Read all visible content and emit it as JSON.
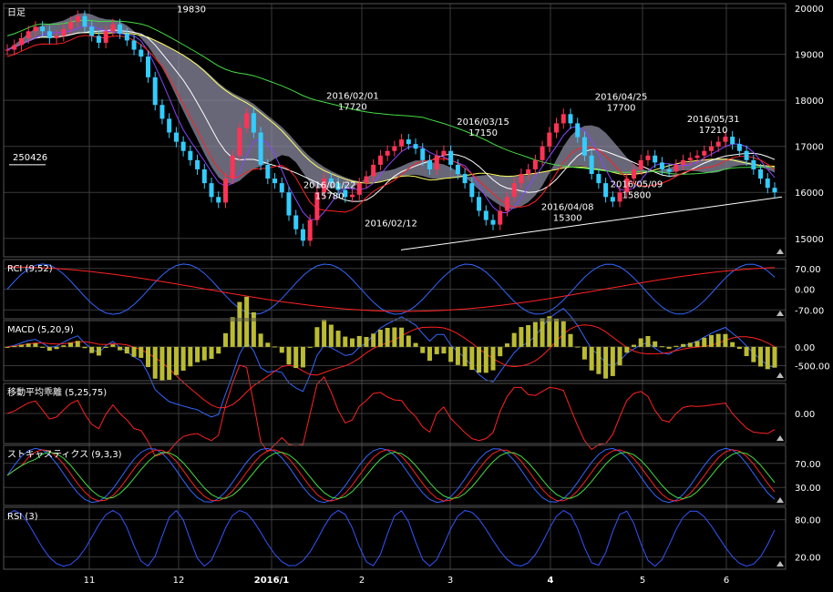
{
  "chart_data": [
    {
      "panel": "price",
      "type": "candlestick",
      "title": "日足",
      "ylim": [
        14600,
        20100
      ],
      "yticks": [
        15000,
        16000,
        17000,
        18000,
        19000,
        20000
      ],
      "xticks": [
        "11",
        "12",
        "2016/1",
        "2",
        "3",
        "4",
        "5",
        "6"
      ],
      "annotations": [
        {
          "date": "",
          "value": "19830",
          "x": 0.24,
          "y": 19830
        },
        {
          "date": "2016/02/01",
          "value": "17720",
          "x": 0.45,
          "y": 17720
        },
        {
          "date": "2016/01/22",
          "value": "15780",
          "x": 0.42,
          "y": 15780
        },
        {
          "date": "2016/02/12",
          "value": "",
          "x": 0.5,
          "y": 14950
        },
        {
          "date": "2016/03/15",
          "value": "17150",
          "x": 0.62,
          "y": 17150
        },
        {
          "date": "2016/04/08",
          "value": "15300",
          "x": 0.73,
          "y": 15300
        },
        {
          "date": "2016/04/25",
          "value": "17700",
          "x": 0.8,
          "y": 17700
        },
        {
          "date": "2016/05/09",
          "value": "15800",
          "x": 0.82,
          "y": 15800
        },
        {
          "date": "2016/05/31",
          "value": "17210",
          "x": 0.92,
          "y": 17210
        }
      ],
      "volume_label": "250426",
      "close_series": [
        19100,
        19200,
        19350,
        19500,
        19600,
        19500,
        19350,
        19400,
        19550,
        19700,
        19830,
        19600,
        19400,
        19250,
        19500,
        19650,
        19450,
        19300,
        19100,
        18950,
        18500,
        17900,
        17600,
        17300,
        17100,
        16900,
        16700,
        16500,
        16200,
        15900,
        15780,
        16300,
        16800,
        17400,
        17720,
        17300,
        16600,
        16300,
        16200,
        16000,
        15500,
        15200,
        14950,
        15400,
        16000,
        16300,
        16200,
        16050,
        15900,
        15950,
        16200,
        16350,
        16600,
        16800,
        16900,
        17000,
        17150,
        17050,
        16950,
        16700,
        16500,
        16800,
        16900,
        16600,
        16400,
        16200,
        15900,
        15600,
        15400,
        15300,
        15600,
        15900,
        16200,
        16400,
        16500,
        16700,
        17000,
        17300,
        17500,
        17700,
        17500,
        17200,
        16800,
        16400,
        16200,
        15900,
        15800,
        16000,
        16300,
        16500,
        16700,
        16800,
        16650,
        16500,
        16450,
        16600,
        16700,
        16750,
        16800,
        16900,
        17000,
        17100,
        17210,
        17050,
        16900,
        16700,
        16500,
        16300,
        16100,
        16000
      ]
    },
    {
      "panel": "rci",
      "type": "line",
      "title": "RCI (9,52)",
      "ylim": [
        -100,
        100
      ],
      "yticks": [
        70,
        0,
        -70
      ],
      "ytick_labels": [
        "70.00",
        "0.00",
        "-70.00"
      ]
    },
    {
      "panel": "macd",
      "type": "bar",
      "title": "MACD (5,20,9)",
      "ylim": [
        -900,
        700
      ],
      "yticks": [
        0,
        -500
      ],
      "ytick_labels": [
        "0.00",
        "-500.00"
      ]
    },
    {
      "panel": "deviation",
      "type": "line",
      "title": "移動平均乖離 (5,25,75)",
      "ylim": [
        -10,
        10
      ],
      "yticks": [
        0
      ],
      "ytick_labels": [
        "0.00"
      ]
    },
    {
      "panel": "stochastics",
      "type": "line",
      "title": "ストキャスティクス (9,3,3)",
      "ylim": [
        0,
        100
      ],
      "yticks": [
        70,
        30
      ],
      "ytick_labels": [
        "70.00",
        "30.00"
      ]
    },
    {
      "panel": "rsi",
      "type": "line",
      "title": "RSI (3)",
      "ylim": [
        0,
        100
      ],
      "yticks": [
        80,
        20
      ],
      "ytick_labels": [
        "80.00",
        "20.00"
      ]
    }
  ],
  "colors": {
    "background": "#000000",
    "grid": "#3a3a3a",
    "up_candle": "#ff3355",
    "down_candle": "#33ccff",
    "cloud": "#8a8aa0",
    "ma_short": "#ffff66",
    "ma_mid": "#ffffff",
    "ma_long": "#44dd44",
    "tenkan": "#8844ff",
    "kijun": "#ff2222",
    "chikou": "#33aa33",
    "rci_fast": "#3366ff",
    "rci_slow": "#ff2222",
    "macd_hist": "#bbbb33",
    "deviation": "#ff2222",
    "rsi": "#3355ff"
  }
}
